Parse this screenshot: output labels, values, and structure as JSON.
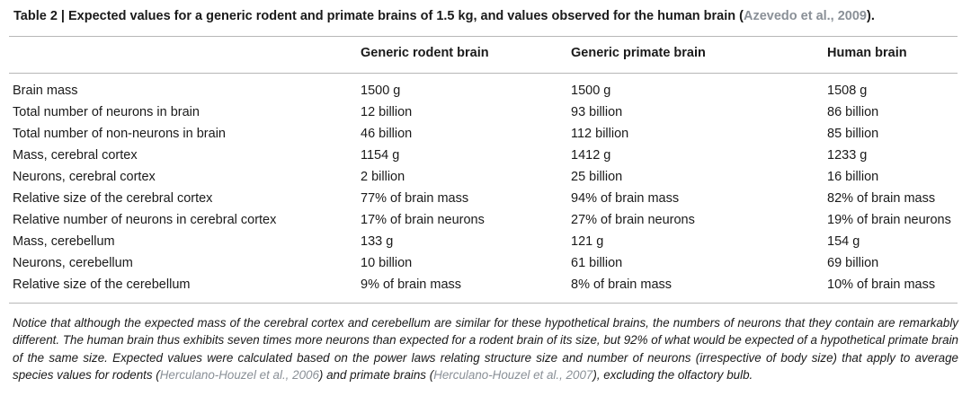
{
  "caption": {
    "text": "Table 2 | Expected values for a generic rodent and primate brains of 1.5 kg, and values observed for the human brain (",
    "citation": "Azevedo et al., 2009",
    "suffix": ")."
  },
  "columns": [
    "",
    "Generic rodent brain",
    "Generic primate brain",
    "Human brain"
  ],
  "rows": [
    [
      "Brain mass",
      "1500 g",
      "1500 g",
      "1508 g"
    ],
    [
      "Total number of neurons in brain",
      "12 billion",
      "93 billion",
      "86 billion"
    ],
    [
      "Total number of non-neurons in brain",
      "46 billion",
      "112 billion",
      "85 billion"
    ],
    [
      "Mass, cerebral cortex",
      "1154 g",
      "1412 g",
      "1233 g"
    ],
    [
      "Neurons, cerebral cortex",
      "2 billion",
      "25 billion",
      "16 billion"
    ],
    [
      "Relative size of the cerebral cortex",
      "77% of brain mass",
      "94% of brain mass",
      "82% of brain mass"
    ],
    [
      "Relative number of neurons in cerebral cortex",
      "17% of brain neurons",
      "27% of brain neurons",
      "19% of brain neurons"
    ],
    [
      "Mass, cerebellum",
      "133 g",
      "121 g",
      "154 g"
    ],
    [
      "Neurons, cerebellum",
      "10 billion",
      "61 billion",
      "69 billion"
    ],
    [
      "Relative size of the cerebellum",
      "9% of brain mass",
      "8% of brain mass",
      "10% of brain mass"
    ]
  ],
  "note": {
    "part1": "Notice that although the expected mass of the cerebral cortex and cerebellum are similar for these hypothetical brains, the numbers of neurons that they contain are remarkably different. The human brain thus exhibits seven times more neurons than expected for a rodent brain of its size, but 92% of what would be expected of a hypothetical primate brain of the same size. Expected values were calculated based on the power laws relating structure size and number of neurons (irrespective of body size) that apply to average species values for rodents (",
    "cite1": "Herculano-Houzel et al., 2006",
    "part2": ") and primate brains (",
    "cite2": "Herculano-Houzel et al., 2007",
    "part3": "), excluding the olfactory bulb."
  },
  "colors": {
    "text": "#1a1a1a",
    "citation": "#8a9097",
    "rule": "#b7b7b7"
  }
}
